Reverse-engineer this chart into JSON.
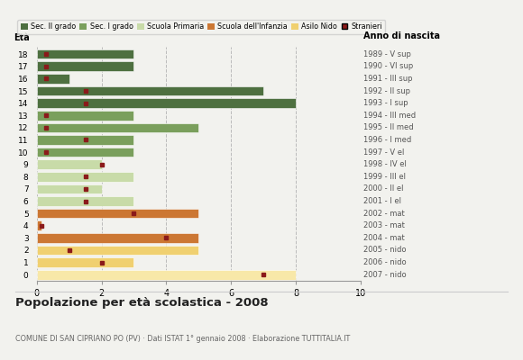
{
  "ages": [
    18,
    17,
    16,
    15,
    14,
    13,
    12,
    11,
    10,
    9,
    8,
    7,
    6,
    5,
    4,
    3,
    2,
    1,
    0
  ],
  "bar_values": [
    3,
    3,
    1,
    7,
    8,
    3,
    5,
    3,
    3,
    2,
    3,
    2,
    3,
    5,
    0.15,
    5,
    5,
    3,
    8
  ],
  "bar_colors": [
    "#4e7040",
    "#4e7040",
    "#4e7040",
    "#4e7040",
    "#4e7040",
    "#7a9f5c",
    "#7a9f5c",
    "#7a9f5c",
    "#7a9f5c",
    "#c8dba8",
    "#c8dba8",
    "#c8dba8",
    "#c8dba8",
    "#cc7733",
    "#cc7733",
    "#cc7733",
    "#f0d070",
    "#f0d070",
    "#f8e8a8"
  ],
  "stranieri_x": [
    0.3,
    0.3,
    0.3,
    1.5,
    1.5,
    0.3,
    0.3,
    1.5,
    0.3,
    2.0,
    1.5,
    1.5,
    1.5,
    3.0,
    0.15,
    4.0,
    1.0,
    2.0,
    7.0
  ],
  "right_labels": [
    "1989 - V sup",
    "1990 - VI sup",
    "1991 - III sup",
    "1992 - II sup",
    "1993 - I sup",
    "1994 - III med",
    "1995 - II med",
    "1996 - I med",
    "1997 - V el",
    "1998 - IV el",
    "1999 - III el",
    "2000 - II el",
    "2001 - I el",
    "2002 - mat",
    "2003 - mat",
    "2004 - mat",
    "2005 - nido",
    "2006 - nido",
    "2007 - nido"
  ],
  "legend_labels": [
    "Sec. II grado",
    "Sec. I grado",
    "Scuola Primaria",
    "Scuola dell'Infanzia",
    "Asilo Nido",
    "Stranieri"
  ],
  "legend_colors": [
    "#4e7040",
    "#7a9f5c",
    "#c8dba8",
    "#cc7733",
    "#f0d070",
    "#8b1a1a"
  ],
  "title": "Popolazione per età scolastica - 2008",
  "subtitle": "COMUNE DI SAN CIPRIANO PO (PV) · Dati ISTAT 1° gennaio 2008 · Elaborazione TUTTITALIA.IT",
  "eta_label": "Età",
  "anno_label": "Anno di nascita",
  "xlim": [
    0,
    10
  ],
  "xticks": [
    0,
    2,
    4,
    6,
    8,
    10
  ],
  "background_color": "#f2f2ee",
  "grid_color": "#bbbbbb"
}
